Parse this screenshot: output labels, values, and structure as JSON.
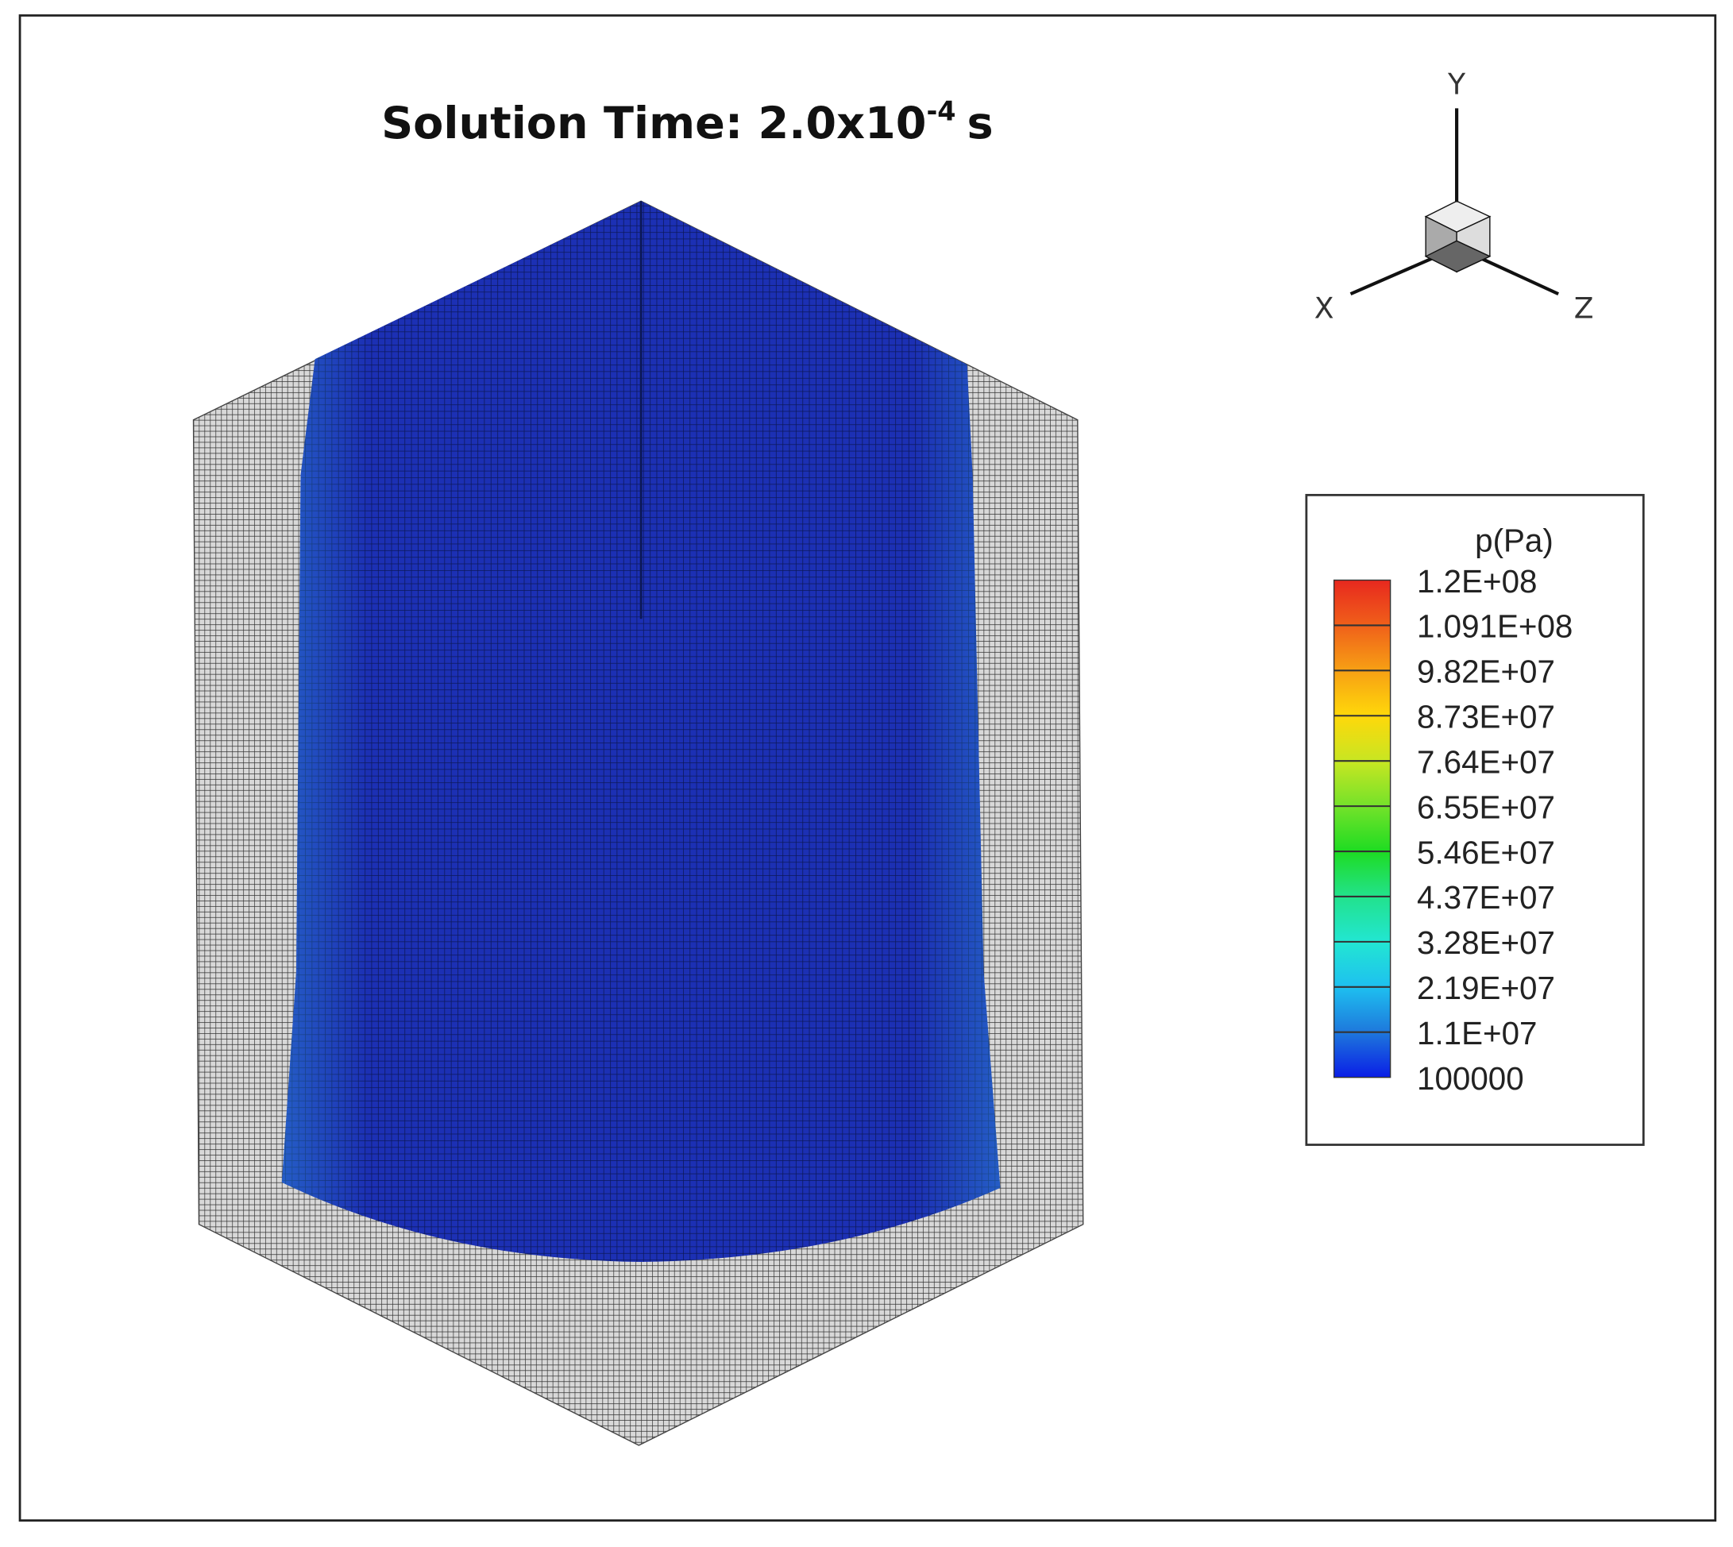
{
  "title": {
    "prefix": "Solution Time: 2.0x10",
    "exponent": "-4",
    "suffix": "s"
  },
  "axes": {
    "x": "X",
    "y": "Y",
    "z": "Z"
  },
  "legend": {
    "title": "p(Pa)",
    "levels": [
      "1.2E+08",
      "1.091E+08",
      "9.82E+07",
      "8.73E+07",
      "7.64E+07",
      "6.55E+07",
      "5.46E+07",
      "4.37E+07",
      "3.28E+07",
      "2.19E+07",
      "1.1E+07",
      "100000"
    ],
    "colors": [
      "#e8281e",
      "#f0601a",
      "#f7a014",
      "#ffd80a",
      "#c8e622",
      "#74e22a",
      "#1edc22",
      "#22e28c",
      "#22e6d2",
      "#1ec0f0",
      "#1e78dc",
      "#0a1ee6"
    ]
  }
}
